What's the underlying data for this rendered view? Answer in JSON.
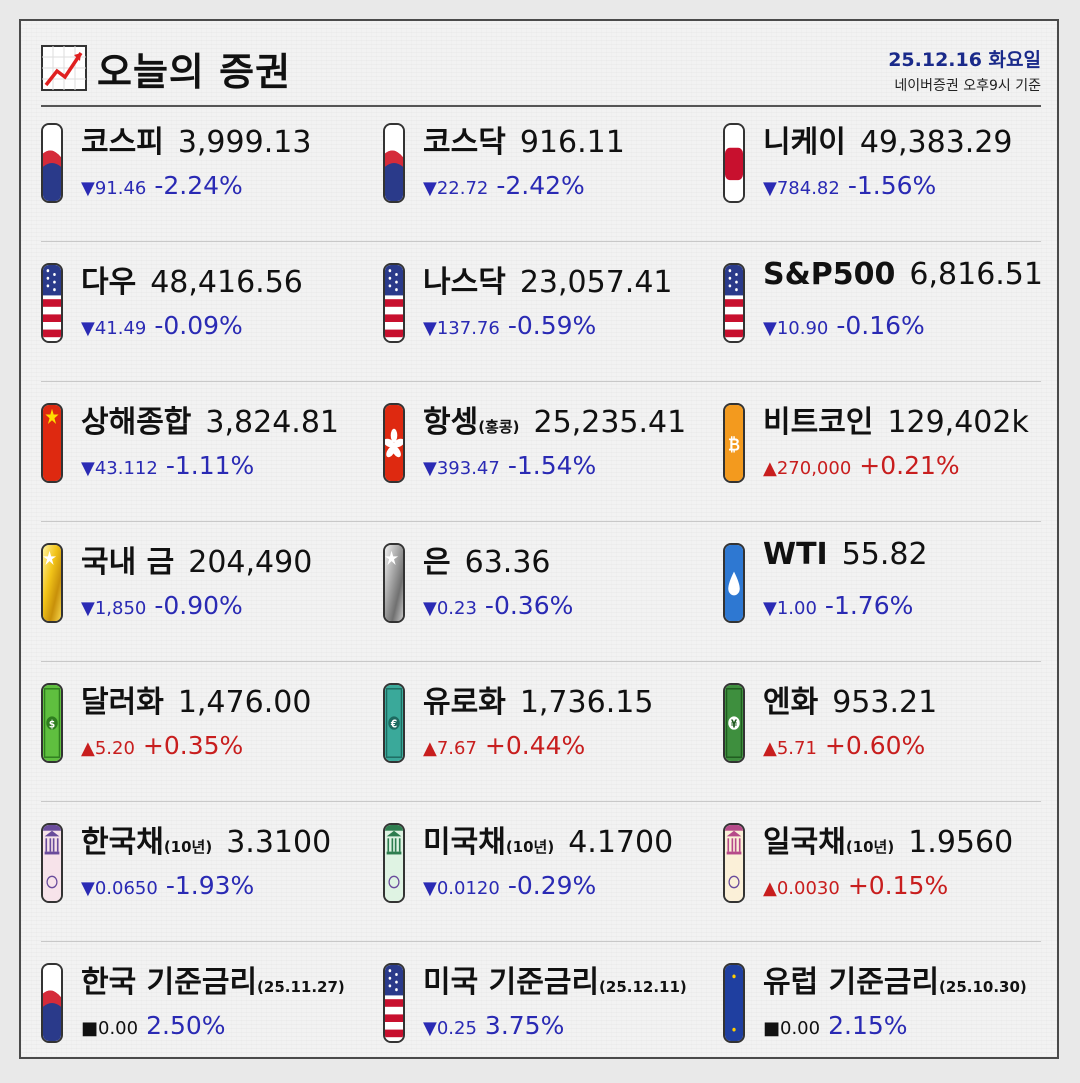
{
  "header": {
    "title": "오늘의 증권",
    "date": "25.12.16 화요일",
    "source": "네이버증권 오후9시 기준"
  },
  "rows": [
    [
      {
        "name": "코스피",
        "sub": "",
        "value": "3,999.13",
        "change": "▼91.46",
        "pct": "-2.24%",
        "dir": "down",
        "flag": "kr"
      },
      {
        "name": "코스닥",
        "sub": "",
        "value": "916.11",
        "change": "▼22.72",
        "pct": "-2.42%",
        "dir": "down",
        "flag": "kr"
      },
      {
        "name": "니케이",
        "sub": "",
        "value": "49,383.29",
        "change": "▼784.82",
        "pct": "-1.56%",
        "dir": "down",
        "flag": "jp"
      }
    ],
    [
      {
        "name": "다우",
        "sub": "",
        "value": "48,416.56",
        "change": "▼41.49",
        "pct": "-0.09%",
        "dir": "down",
        "flag": "us"
      },
      {
        "name": "나스닥",
        "sub": "",
        "value": "23,057.41",
        "change": "▼137.76",
        "pct": "-0.59%",
        "dir": "down",
        "flag": "us"
      },
      {
        "name": "S&P500",
        "sub": "",
        "value": "6,816.51",
        "change": "▼10.90",
        "pct": "-0.16%",
        "dir": "down",
        "flag": "us"
      }
    ],
    [
      {
        "name": "상해종합",
        "sub": "",
        "value": "3,824.81",
        "change": "▼43.112",
        "pct": "-1.11%",
        "dir": "down",
        "flag": "cn"
      },
      {
        "name": "항셍",
        "sub": "(홍콩)",
        "value": "25,235.41",
        "change": "▼393.47",
        "pct": "-1.54%",
        "dir": "down",
        "flag": "hk"
      },
      {
        "name": "비트코인",
        "sub": "",
        "value": "129,402k",
        "change": "▲270,000",
        "pct": "+0.21%",
        "dir": "up",
        "flag": "btc"
      }
    ],
    [
      {
        "name": "국내 금",
        "sub": "",
        "value": "204,490",
        "change": "▼1,850",
        "pct": "-0.90%",
        "dir": "down",
        "flag": "gold"
      },
      {
        "name": "은",
        "sub": "",
        "value": "63.36",
        "change": "▼0.23",
        "pct": "-0.36%",
        "dir": "down",
        "flag": "silver"
      },
      {
        "name": "WTI",
        "sub": "",
        "value": "55.82",
        "change": "▼1.00",
        "pct": "-1.76%",
        "dir": "down",
        "flag": "oil"
      }
    ],
    [
      {
        "name": "달러화",
        "sub": "",
        "value": "1,476.00",
        "change": "▲5.20",
        "pct": "+0.35%",
        "dir": "up",
        "flag": "usd"
      },
      {
        "name": "유로화",
        "sub": "",
        "value": "1,736.15",
        "change": "▲7.67",
        "pct": "+0.44%",
        "dir": "up",
        "flag": "eur"
      },
      {
        "name": "엔화",
        "sub": "",
        "value": "953.21",
        "change": "▲5.71",
        "pct": "+0.60%",
        "dir": "up",
        "flag": "jpy"
      }
    ],
    [
      {
        "name": "한국채",
        "sub": "(10년)",
        "value": "3.3100",
        "change": "▼0.0650",
        "pct": "-1.93%",
        "dir": "down",
        "flag": "bondkr"
      },
      {
        "name": "미국채",
        "sub": "(10년)",
        "value": "4.1700",
        "change": "▼0.0120",
        "pct": "-0.29%",
        "dir": "down",
        "flag": "bondus"
      },
      {
        "name": "일국채",
        "sub": "(10년)",
        "value": "1.9560",
        "change": "▲0.0030",
        "pct": "+0.15%",
        "dir": "up",
        "flag": "bondjp"
      }
    ],
    [
      {
        "name": "한국 기준금리",
        "sub": "(25.11.27)",
        "value": "",
        "change": "■0.00",
        "pct": "2.50%",
        "dir": "flat",
        "flag": "kr"
      },
      {
        "name": "미국 기준금리",
        "sub": "(25.12.11)",
        "value": "",
        "change": "▼0.25",
        "pct": "3.75%",
        "dir": "down",
        "flag": "us"
      },
      {
        "name": "유럽 기준금리",
        "sub": "(25.10.30)",
        "value": "",
        "change": "■0.00",
        "pct": "2.15%",
        "dir": "flat",
        "flag": "eu"
      }
    ]
  ],
  "colors": {
    "down": "#2a2ab4",
    "up": "#c81e1e",
    "border": "#4a4a4a"
  }
}
